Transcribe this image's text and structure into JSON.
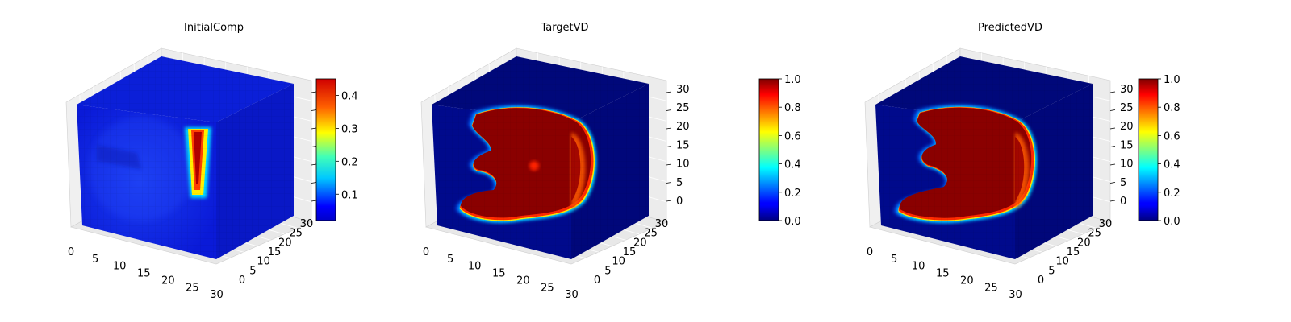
{
  "colormap": "jet",
  "chart_data": [
    {
      "type": "voxel-3d",
      "title": "InitialComp",
      "x_ticks": [
        "0",
        "5",
        "10",
        "15",
        "20",
        "25",
        "30"
      ],
      "y_ticks": [
        "0",
        "5",
        "10",
        "15",
        "20",
        "25",
        "30"
      ],
      "z_ticks": [],
      "colorbar": {
        "vmin": 0.02,
        "vmax": 0.45,
        "ticks": [
          "0.1",
          "0.2",
          "0.3",
          "0.4"
        ],
        "tick_values": [
          0.1,
          0.2,
          0.3,
          0.4
        ]
      },
      "highlight": "vertical bar near right front edge, value ~0.45",
      "background_value": 0.05
    },
    {
      "type": "voxel-3d",
      "title": "TargetVD",
      "x_ticks": [
        "0",
        "5",
        "10",
        "15",
        "20",
        "25",
        "30"
      ],
      "y_ticks": [
        "0",
        "5",
        "10",
        "15",
        "20",
        "25",
        "30"
      ],
      "z_ticks": [
        "0",
        "5",
        "10",
        "15",
        "20",
        "25",
        "30"
      ],
      "colorbar": {
        "vmin": 0.0,
        "vmax": 1.0,
        "ticks": [
          "0.0",
          "0.2",
          "0.4",
          "0.6",
          "0.8",
          "1.0"
        ],
        "tick_values": [
          0,
          0.2,
          0.4,
          0.6,
          0.8,
          1.0
        ]
      },
      "highlight": "C-shaped region, value ~1.0",
      "background_value": 0.0
    },
    {
      "type": "voxel-3d",
      "title": "PredictedVD",
      "x_ticks": [
        "0",
        "5",
        "10",
        "15",
        "20",
        "25",
        "30"
      ],
      "y_ticks": [
        "0",
        "5",
        "10",
        "15",
        "20",
        "25",
        "30"
      ],
      "z_ticks": [
        "0",
        "5",
        "10",
        "15",
        "20",
        "25",
        "30"
      ],
      "colorbar": {
        "vmin": 0.0,
        "vmax": 1.0,
        "ticks": [
          "0.0",
          "0.2",
          "0.4",
          "0.6",
          "0.8",
          "1.0"
        ],
        "tick_values": [
          0,
          0.2,
          0.4,
          0.6,
          0.8,
          1.0
        ]
      },
      "highlight": "C-shaped region, value ~1.0",
      "background_value": 0.0
    }
  ]
}
